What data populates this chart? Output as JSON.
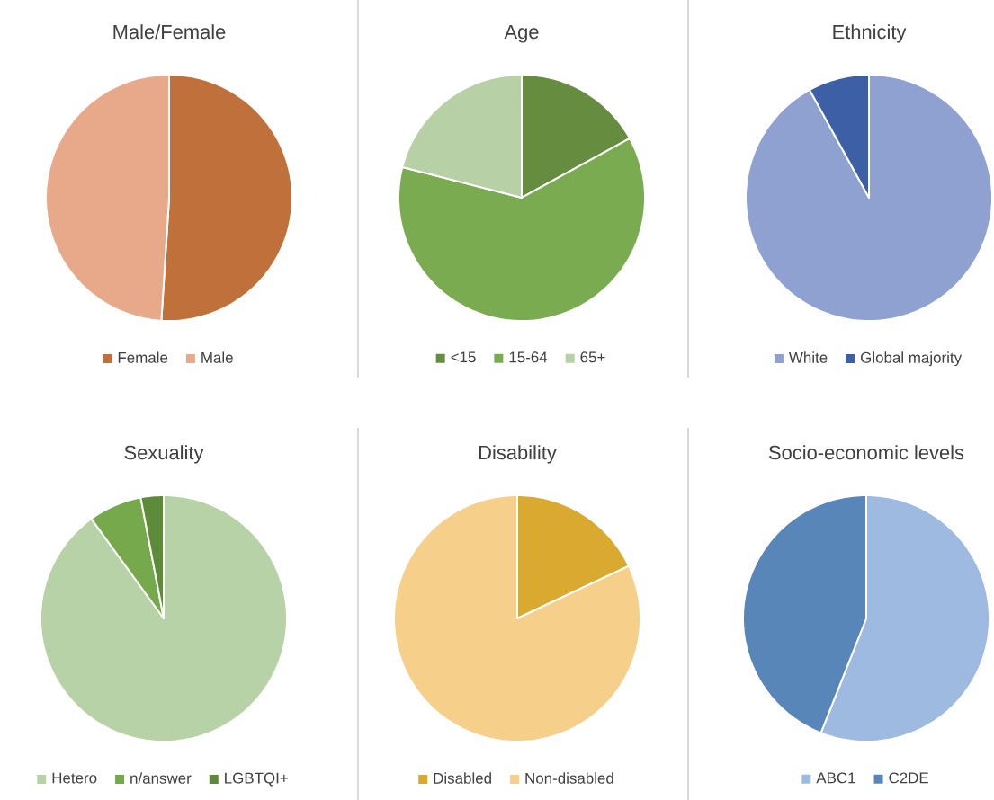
{
  "chart_data": [
    {
      "type": "pie",
      "title": "Male/Female",
      "categories": [
        "Female",
        "Male"
      ],
      "values": [
        51,
        49
      ],
      "colors": [
        "#c0703a",
        "#e8a98a"
      ],
      "legend": "bottom"
    },
    {
      "type": "pie",
      "title": "Age",
      "categories": [
        "<15",
        "15-64",
        "65+"
      ],
      "values": [
        17,
        62,
        21
      ],
      "colors": [
        "#668c3f",
        "#7aab51",
        "#b8d0a6"
      ],
      "legend": "bottom"
    },
    {
      "type": "pie",
      "title": "Ethnicity",
      "categories": [
        "White",
        "Global majority"
      ],
      "values": [
        92,
        8
      ],
      "colors": [
        "#8fa1d1",
        "#3c5fa6"
      ],
      "legend": "bottom"
    },
    {
      "type": "pie",
      "title": "Sexuality",
      "categories": [
        "Hetero",
        "n/answer",
        "LGBTQI+"
      ],
      "values": [
        90,
        7,
        3
      ],
      "colors": [
        "#b7d2a6",
        "#76a84c",
        "#5d8b3a"
      ],
      "legend": "bottom"
    },
    {
      "type": "pie",
      "title": "Disability",
      "categories": [
        "Disabled",
        "Non-disabled"
      ],
      "values": [
        18,
        82
      ],
      "colors": [
        "#daa930",
        "#f6cf8b"
      ],
      "legend": "bottom"
    },
    {
      "type": "pie",
      "title": "Socio-economic levels",
      "categories": [
        "ABC1",
        "C2DE"
      ],
      "values": [
        56,
        44
      ],
      "colors": [
        "#9ebae0",
        "#5886b8"
      ],
      "legend": "bottom"
    }
  ]
}
